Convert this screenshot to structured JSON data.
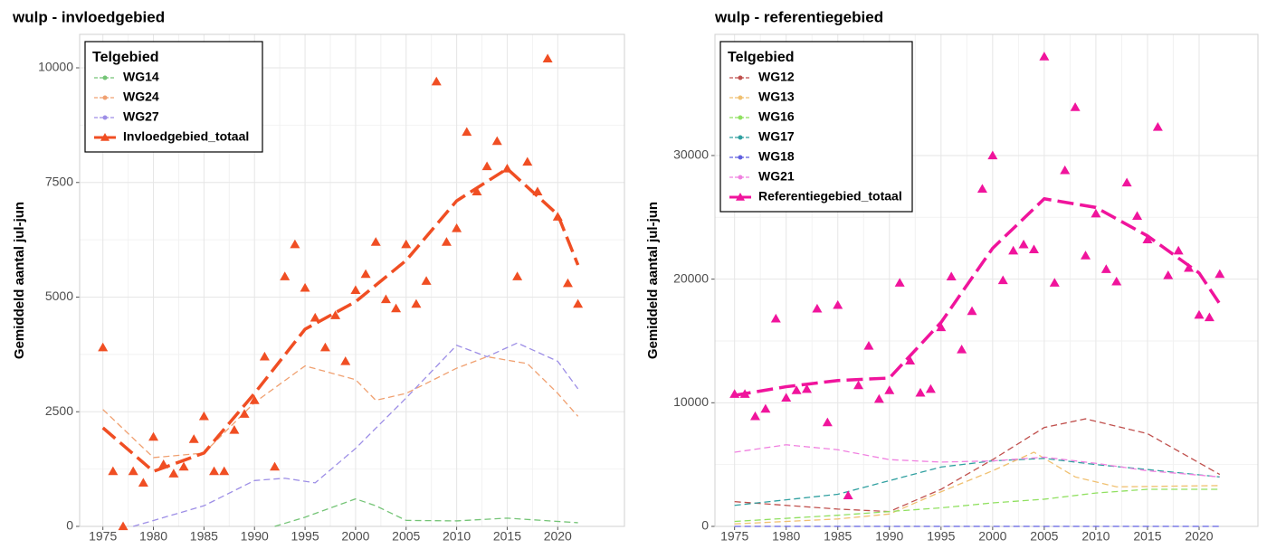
{
  "chart_data": [
    {
      "type": "line",
      "title": "wulp - invloedgebied",
      "y_label": "Gemiddeld aantal jul-jun",
      "legend_title": "Telgebied",
      "legend_position": "top-left",
      "grid": true,
      "xlim": [
        1972.7,
        2026.6
      ],
      "ylim": [
        0,
        10730
      ],
      "xticks": [
        1975,
        1980,
        1985,
        1990,
        1995,
        2000,
        2005,
        2010,
        2015,
        2020
      ],
      "yticks": [
        0,
        2500,
        5000,
        7500,
        10000
      ],
      "series": [
        {
          "name": "WG14",
          "color": "#74c476",
          "x": [
            1992,
            1995,
            2000,
            2002,
            2005,
            2010,
            2015,
            2022
          ],
          "values": [
            0,
            200,
            600,
            450,
            130,
            120,
            180,
            80
          ]
        },
        {
          "name": "WG24",
          "color": "#f0a070",
          "x": [
            1975,
            1980,
            1985,
            1990,
            1995,
            2000,
            2002,
            2005,
            2010,
            2013,
            2017,
            2020,
            2022
          ],
          "values": [
            2550,
            1500,
            1600,
            2700,
            3500,
            3200,
            2750,
            2900,
            3450,
            3700,
            3550,
            2900,
            2400
          ]
        },
        {
          "name": "WG27",
          "color": "#9d8ee6",
          "x": [
            1978,
            1985,
            1990,
            1993,
            1996,
            2000,
            2005,
            2010,
            2013,
            2016,
            2020,
            2022
          ],
          "values": [
            0,
            450,
            1000,
            1050,
            950,
            1700,
            2800,
            3950,
            3700,
            4000,
            3600,
            3000
          ]
        },
        {
          "name": "Invloedgebied_totaal",
          "color": "#f04e23",
          "bold": true,
          "x": [
            1975,
            1980,
            1985,
            1990,
            1995,
            2000,
            2005,
            2010,
            2015,
            2020,
            2022
          ],
          "values": [
            2150,
            1200,
            1600,
            2900,
            4300,
            4900,
            5800,
            7100,
            7800,
            6800,
            5700
          ],
          "points_x": [
            1975,
            1976,
            1977,
            1978,
            1979,
            1980,
            1981,
            1982,
            1983,
            1984,
            1985,
            1986,
            1987,
            1988,
            1989,
            1990,
            1991,
            1992,
            1993,
            1994,
            1995,
            1996,
            1997,
            1998,
            1999,
            2000,
            2001,
            2002,
            2003,
            2004,
            2005,
            2006,
            2007,
            2008,
            2009,
            2010,
            2011,
            2012,
            2013,
            2014,
            2015,
            2016,
            2017,
            2018,
            2019,
            2020,
            2021,
            2022
          ],
          "points": [
            3900,
            1200,
            0,
            1200,
            950,
            1950,
            1350,
            1150,
            1300,
            1900,
            2400,
            1200,
            1200,
            2100,
            2450,
            2750,
            3700,
            1300,
            5450,
            6150,
            5200,
            4550,
            3900,
            4600,
            3600,
            5150,
            5500,
            6200,
            4950,
            4750,
            6150,
            4850,
            5350,
            9700,
            6200,
            6500,
            8600,
            7300,
            7850,
            8400,
            7800,
            5450,
            7950,
            7300,
            10200,
            6750,
            5300,
            4850
          ]
        }
      ]
    },
    {
      "type": "line",
      "title": "wulp - referentiegebied",
      "y_label": "Gemiddeld aantal jul-jun",
      "legend_title": "Telgebied",
      "legend_position": "top-left",
      "grid": true,
      "xlim": [
        1973.1,
        2025.7
      ],
      "ylim": [
        0,
        39800
      ],
      "xticks": [
        1975,
        1980,
        1985,
        1990,
        1995,
        2000,
        2005,
        2010,
        2015,
        2020
      ],
      "yticks": [
        0,
        10000,
        20000,
        30000
      ],
      "series": [
        {
          "name": "WG12",
          "color": "#c0504d",
          "x": [
            1975,
            1980,
            1985,
            1990,
            1995,
            2000,
            2005,
            2009,
            2015,
            2022
          ],
          "values": [
            2000,
            1700,
            1400,
            1200,
            3000,
            5400,
            8000,
            8700,
            7500,
            4200
          ]
        },
        {
          "name": "WG13",
          "color": "#f0c070",
          "x": [
            1975,
            1985,
            1990,
            1995,
            2000,
            2004,
            2008,
            2012,
            2022
          ],
          "values": [
            200,
            600,
            1000,
            2800,
            4500,
            6000,
            4000,
            3200,
            3300
          ]
        },
        {
          "name": "WG16",
          "color": "#90e060",
          "x": [
            1975,
            1985,
            1995,
            2000,
            2005,
            2010,
            2015,
            2022
          ],
          "values": [
            400,
            900,
            1500,
            1900,
            2200,
            2700,
            3000,
            3000
          ]
        },
        {
          "name": "WG17",
          "color": "#30a0a0",
          "x": [
            1975,
            1985,
            1995,
            2000,
            2005,
            2010,
            2015,
            2022
          ],
          "values": [
            1700,
            2600,
            4800,
            5300,
            5500,
            5000,
            4600,
            4000
          ]
        },
        {
          "name": "WG18",
          "color": "#6060e0",
          "x": [
            1975,
            2022
          ],
          "values": [
            0,
            0
          ]
        },
        {
          "name": "WG21",
          "color": "#f080e0",
          "x": [
            1975,
            1980,
            1985,
            1990,
            1995,
            2000,
            2005,
            2010,
            2015,
            2022
          ],
          "values": [
            6000,
            6600,
            6200,
            5400,
            5200,
            5300,
            5600,
            5100,
            4500,
            4000
          ]
        },
        {
          "name": "Referentiegebied_totaal",
          "color": "#f0149c",
          "bold": true,
          "x": [
            1975,
            1980,
            1985,
            1990,
            1995,
            2000,
            2005,
            2010,
            2015,
            2020,
            2022
          ],
          "values": [
            10600,
            11300,
            11800,
            12000,
            16500,
            22500,
            26500,
            25800,
            23500,
            20500,
            18000
          ],
          "points_x": [
            1975,
            1976,
            1977,
            1978,
            1979,
            1980,
            1981,
            1982,
            1983,
            1984,
            1985,
            1986,
            1987,
            1988,
            1989,
            1990,
            1991,
            1992,
            1993,
            1994,
            1995,
            1996,
            1997,
            1998,
            1999,
            2000,
            2001,
            2002,
            2003,
            2004,
            2005,
            2006,
            2007,
            2008,
            2009,
            2010,
            2011,
            2012,
            2013,
            2014,
            2015,
            2016,
            2017,
            2018,
            2019,
            2020,
            2021,
            2022
          ],
          "points": [
            10700,
            10700,
            8900,
            9500,
            16800,
            10400,
            11000,
            11100,
            17600,
            8400,
            17900,
            2500,
            11400,
            14600,
            10300,
            11000,
            19700,
            13400,
            10800,
            11100,
            16100,
            20200,
            14300,
            17400,
            27300,
            30000,
            19900,
            22300,
            22800,
            22400,
            38000,
            19700,
            28800,
            33900,
            21900,
            25300,
            20800,
            19800,
            27800,
            25100,
            23200,
            32300,
            20300,
            22300,
            20900,
            17100,
            16900,
            20400
          ]
        }
      ]
    }
  ]
}
